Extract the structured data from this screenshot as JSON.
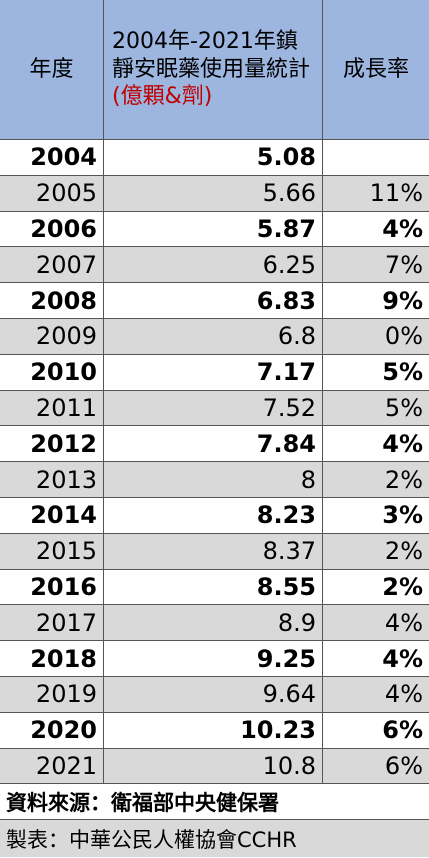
{
  "table": {
    "header": [
      "年度",
      {
        "text": "2004年-2021年鎮靜安眠藥使用量統計",
        "unit": "(億顆&劑)"
      },
      "成長率"
    ],
    "rows": [
      [
        "2004",
        "5.08",
        null
      ],
      [
        "2005",
        "5.66",
        "11%"
      ],
      [
        "2006",
        "5.87",
        "4%"
      ],
      [
        "2007",
        "6.25",
        "7%"
      ],
      [
        "2008",
        "6.83",
        "9%"
      ],
      [
        "2009",
        "6.8",
        "0%"
      ],
      [
        "2010",
        "7.17",
        "5%"
      ],
      [
        "2011",
        "7.52",
        "5%"
      ],
      [
        "2012",
        "7.84",
        "4%"
      ],
      [
        "2013",
        "8",
        "2%"
      ],
      [
        "2014",
        "8.23",
        "3%"
      ],
      [
        "2015",
        "8.37",
        "2%"
      ],
      [
        "2016",
        "8.55",
        "2%"
      ],
      [
        "2017",
        "8.9",
        "4%"
      ],
      [
        "2018",
        "9.25",
        "4%"
      ],
      [
        "2019",
        "9.64",
        "4%"
      ],
      [
        "2020",
        "10.23",
        "6%"
      ],
      [
        "2021",
        "10.8",
        "6%"
      ]
    ],
    "footer": [
      "資料來源：衛福部中央健保署",
      "製表：中華公民人權協會CCHR"
    ]
  }
}
